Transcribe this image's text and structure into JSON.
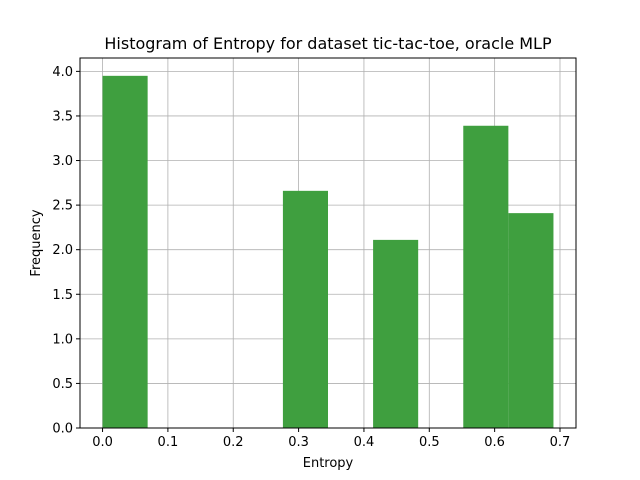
{
  "chart_data": {
    "type": "bar",
    "title": "Histogram of Entropy for dataset tic-tac-toe, oracle MLP",
    "xlabel": "Entropy",
    "ylabel": "Frequency",
    "xlim": [
      -0.0345,
      0.7245
    ],
    "ylim": [
      0,
      4.15
    ],
    "xticks": [
      "0.0",
      "0.1",
      "0.2",
      "0.3",
      "0.4",
      "0.5",
      "0.6",
      "0.7"
    ],
    "yticks": [
      "0.0",
      "0.5",
      "1.0",
      "1.5",
      "2.0",
      "2.5",
      "3.0",
      "3.5",
      "4.0"
    ],
    "grid": true,
    "bar_color": "#3f9f3f",
    "bins": [
      {
        "x0": 0.0,
        "x1": 0.069,
        "value": 3.95
      },
      {
        "x0": 0.069,
        "x1": 0.138,
        "value": 0.0
      },
      {
        "x0": 0.138,
        "x1": 0.207,
        "value": 0.0
      },
      {
        "x0": 0.207,
        "x1": 0.276,
        "value": 0.0
      },
      {
        "x0": 0.276,
        "x1": 0.345,
        "value": 2.66
      },
      {
        "x0": 0.345,
        "x1": 0.414,
        "value": 0.0
      },
      {
        "x0": 0.414,
        "x1": 0.483,
        "value": 2.11
      },
      {
        "x0": 0.483,
        "x1": 0.552,
        "value": 0.0
      },
      {
        "x0": 0.552,
        "x1": 0.621,
        "value": 3.39
      },
      {
        "x0": 0.621,
        "x1": 0.69,
        "value": 2.41
      }
    ]
  }
}
